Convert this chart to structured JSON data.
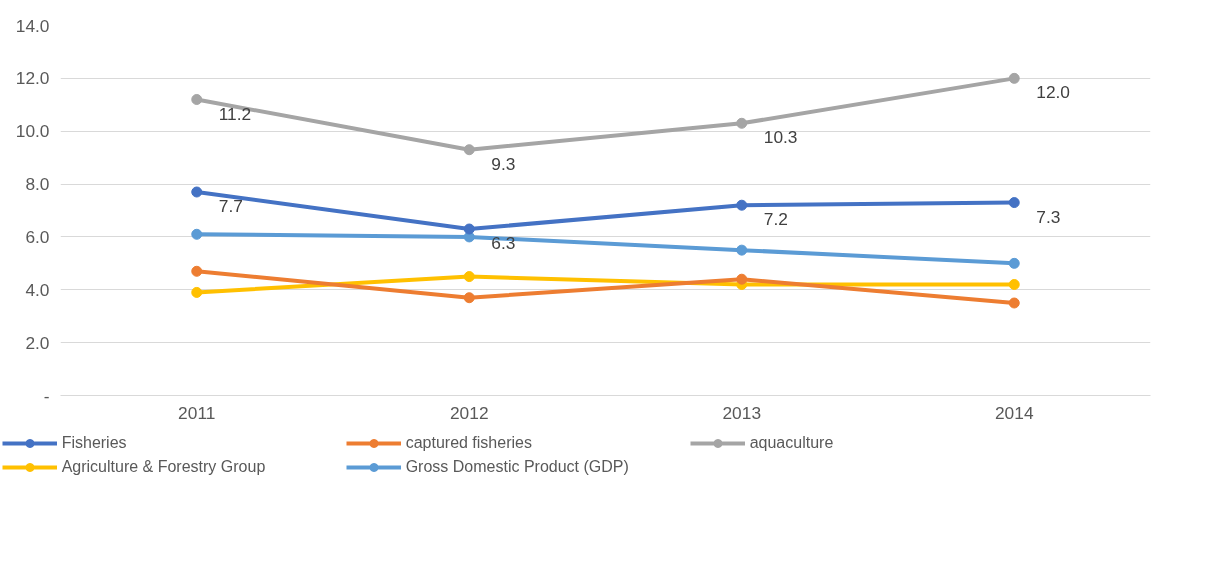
{
  "chart_data": {
    "type": "line",
    "categories": [
      "2011",
      "2012",
      "2013",
      "2014"
    ],
    "series": [
      {
        "name": "Fisheries",
        "color": "#4472c4",
        "values": [
          7.7,
          6.3,
          7.2,
          7.3
        ],
        "value_labels": [
          "7.7",
          "6.3",
          "7.2",
          "7.3"
        ]
      },
      {
        "name": "captured fisheries",
        "color": "#ed7d31",
        "values": [
          4.7,
          3.7,
          4.4,
          3.5
        ]
      },
      {
        "name": "aquaculture",
        "color": "#a5a5a5",
        "values": [
          11.2,
          9.3,
          10.3,
          12.0
        ],
        "value_labels": [
          "11.2",
          "9.3",
          "10.3",
          "12.0"
        ]
      },
      {
        "name": "Agriculture & Forestry Group",
        "color": "#ffc000",
        "values": [
          3.9,
          4.5,
          4.2,
          4.2
        ]
      },
      {
        "name": "Gross Domestic Product (GDP)",
        "color": "#5b9bd5",
        "values": [
          6.1,
          6.0,
          5.5,
          5.0
        ]
      }
    ],
    "ylim": [
      0,
      14
    ],
    "yticks": [
      {
        "value": 0,
        "label": "-"
      },
      {
        "value": 2,
        "label": "2.0"
      },
      {
        "value": 4,
        "label": "4.0"
      },
      {
        "value": 6,
        "label": "6.0"
      },
      {
        "value": 8,
        "label": "8.0"
      },
      {
        "value": 10,
        "label": "10.0"
      },
      {
        "value": 12,
        "label": "12.0"
      },
      {
        "value": 14,
        "label": "14.0"
      }
    ],
    "grid": "y",
    "legend": "bottom",
    "marker": "circle",
    "line_style": "solid"
  }
}
